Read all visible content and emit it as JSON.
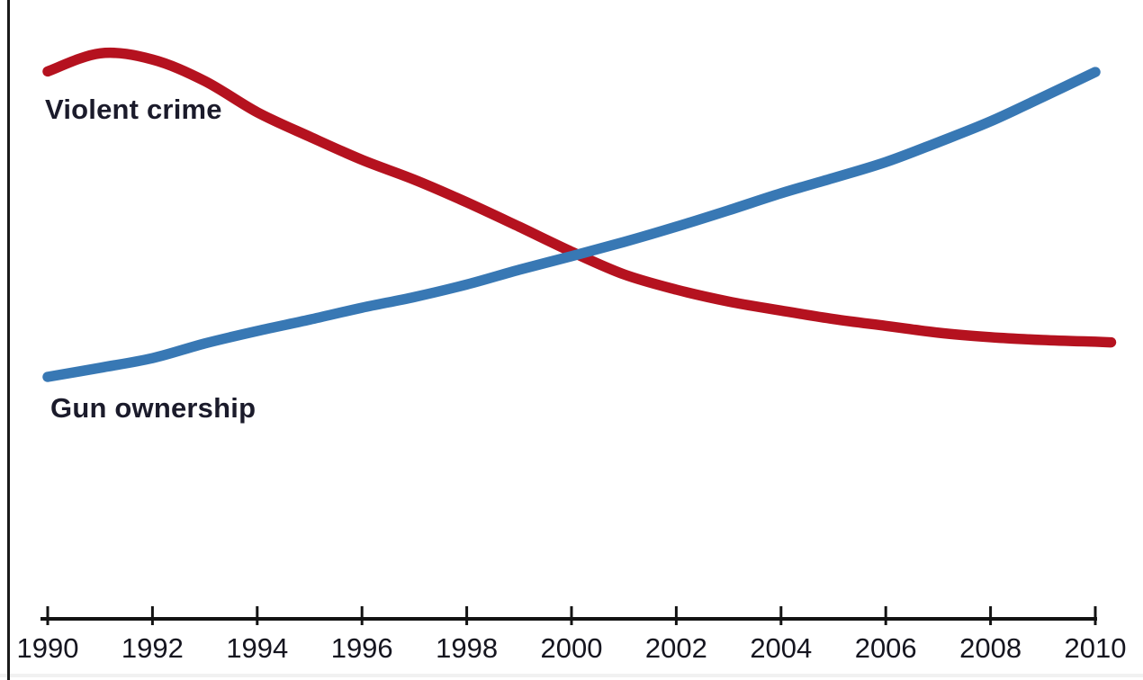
{
  "figure": {
    "background": "#ffffff",
    "frame_color": "#1a1a1a",
    "axis_color": "#131313",
    "tick_label_color": "#15151f",
    "label_color": "#1b1b2b"
  },
  "chart_data": {
    "type": "line",
    "title": "",
    "xlabel": "",
    "ylabel": "",
    "x_range": [
      1990,
      2010
    ],
    "x_ticks": [
      "1990",
      "1992",
      "1994",
      "1996",
      "1998",
      "2000",
      "2002",
      "2004",
      "2006",
      "2008",
      "2010"
    ],
    "y_axis_visible": false,
    "grid": false,
    "legend_position": "inline-annotations",
    "value_scale_note": "relative index 0-100, no y-axis shown in figure",
    "series": [
      {
        "name": "Violent crime",
        "color": "#b5121f",
        "x": [
          1990,
          1991,
          1992,
          1993,
          1994,
          1995,
          1996,
          1997,
          1998,
          1999,
          2000,
          2001,
          2002,
          2003,
          2004,
          2005,
          2006,
          2007,
          2008,
          2009,
          2010,
          2010.3
        ],
        "values": [
          96.6,
          99.8,
          98.7,
          94.9,
          89.4,
          85.1,
          81.0,
          77.5,
          73.5,
          69.2,
          64.8,
          60.8,
          58.1,
          56.0,
          54.4,
          52.9,
          51.7,
          50.5,
          49.7,
          49.2,
          48.9,
          48.8
        ]
      },
      {
        "name": "Gun ownership",
        "color": "#3878b4",
        "x": [
          1990,
          1991,
          1992,
          1993,
          1994,
          1995,
          1996,
          1997,
          1998,
          1999,
          2000,
          2001,
          2002,
          2003,
          2004,
          2005,
          2006,
          2007,
          2008,
          2009,
          2010
        ],
        "values": [
          42.7,
          44.3,
          46.0,
          48.6,
          50.8,
          52.8,
          54.9,
          56.8,
          59.0,
          61.6,
          64.0,
          66.5,
          69.2,
          72.1,
          75.1,
          77.8,
          80.6,
          84.1,
          87.8,
          92.1,
          96.5
        ]
      }
    ],
    "annotations": [
      {
        "text": "Violent crime",
        "near": "start of red line"
      },
      {
        "text": "Gun ownership",
        "near": "start of blue line"
      }
    ]
  }
}
